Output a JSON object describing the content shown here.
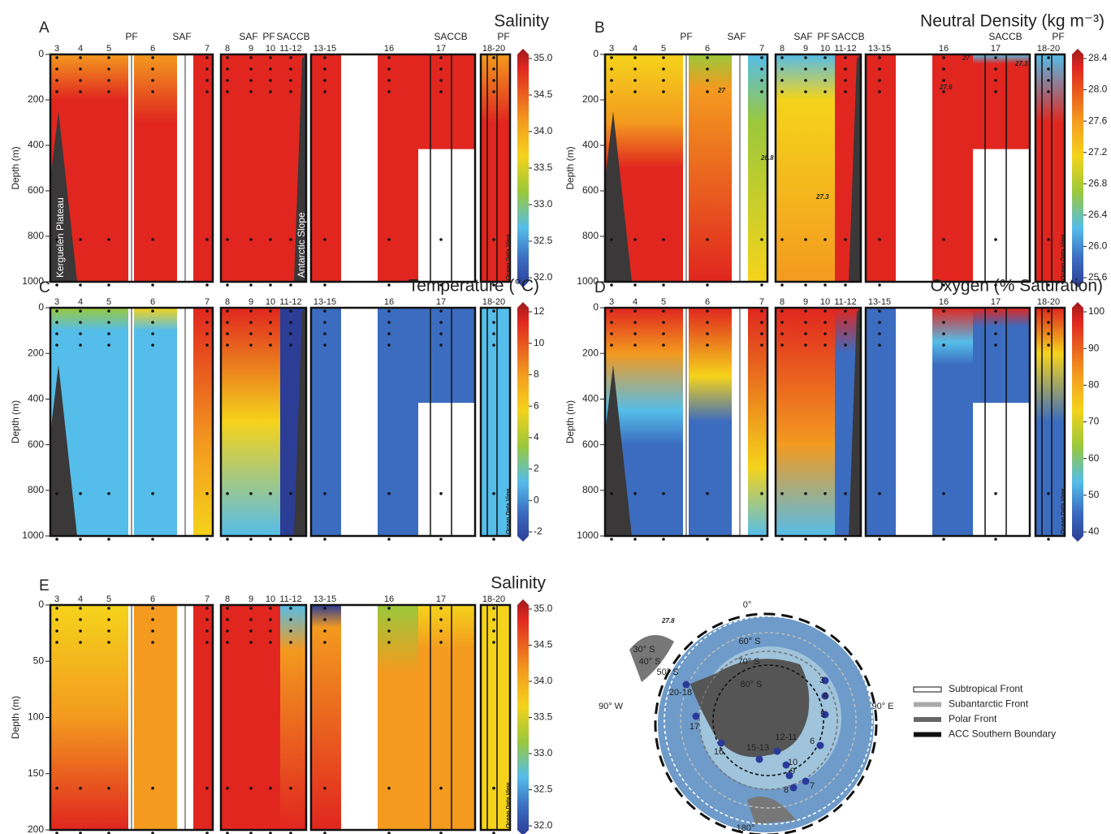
{
  "panels": [
    {
      "letter": "A",
      "title": "Salinity",
      "ylabel": "Depth (m)",
      "ylim": [
        0,
        1000
      ],
      "yticks": [
        0,
        200,
        400,
        600,
        800,
        1000
      ],
      "clim": [
        32,
        35
      ],
      "cticks": [
        {
          "value": 35,
          "label": "35.0"
        },
        34.5,
        {
          "value": 34,
          "label": "34.0"
        },
        33.5,
        {
          "value": 33,
          "label": "33.0"
        },
        32.5,
        {
          "value": 32,
          "label": "32.0"
        }
      ],
      "stations": [
        "3",
        "4",
        "5",
        "6",
        "7",
        "8",
        "9",
        "10",
        "11-12",
        "13-15",
        "16",
        "17",
        "18-20"
      ],
      "fronts": [
        "PF",
        "SAF",
        "SAF",
        "PF",
        "SACCB",
        "SACCB",
        "PF"
      ],
      "annotations": [
        "Kerguelen Plateau",
        "Antarctic Slope"
      ],
      "watermark": "Ocean Data View"
    },
    {
      "letter": "B",
      "title": "Neutral Density (kg m⁻³)",
      "ylabel": "Depth (m)",
      "ylim": [
        0,
        1000
      ],
      "yticks": [
        0,
        200,
        400,
        600,
        800,
        1000
      ],
      "clim": [
        25.6,
        28.4
      ],
      "cticks": [
        28.4,
        {
          "value": 28,
          "label": "28.0"
        },
        27.6,
        27.2,
        26.8,
        26.4,
        {
          "value": 26,
          "label": "26.0"
        },
        25.6
      ],
      "stations": [
        "3",
        "4",
        "5",
        "6",
        "7",
        "8",
        "9",
        "10",
        "11-12",
        "13-15",
        "16",
        "17",
        "18-20"
      ],
      "fronts": [
        "PF",
        "SAF",
        "SAF",
        "PF",
        "SACCB",
        "SACCB",
        "PF"
      ],
      "contour_labels": [
        "27.6",
        "27.8",
        "27",
        "26.8",
        "27",
        "27.3",
        "27.6",
        "27",
        "27.3"
      ],
      "watermark": "Ocean Data View"
    },
    {
      "letter": "C",
      "title": "Temperature (°C)",
      "ylabel": "Depth (m)",
      "ylim": [
        0,
        1000
      ],
      "yticks": [
        0,
        200,
        400,
        600,
        800,
        1000
      ],
      "clim": [
        -2,
        12
      ],
      "cticks": [
        12,
        10,
        8,
        6,
        4,
        2,
        0,
        -2
      ],
      "stations": [
        "3",
        "4",
        "5",
        "6",
        "7",
        "8",
        "9",
        "10",
        "11-12",
        "13-15",
        "16",
        "17",
        "18-20"
      ],
      "watermark": "Ocean Data View"
    },
    {
      "letter": "D",
      "title": "Oxygen (% Saturation)",
      "ylabel": "Depth (m)",
      "ylim": [
        0,
        1000
      ],
      "yticks": [
        0,
        200,
        400,
        600,
        800,
        1000
      ],
      "clim": [
        40,
        100
      ],
      "cticks": [
        100,
        90,
        80,
        70,
        60,
        50,
        40
      ],
      "stations": [
        "3",
        "4",
        "5",
        "6",
        "7",
        "8",
        "9",
        "10",
        "11-12",
        "13-15",
        "16",
        "17",
        "18-20"
      ],
      "watermark": "Ocean Data View"
    },
    {
      "letter": "E",
      "title": "Salinity",
      "ylabel": "Depth (m)",
      "ylim": [
        0,
        200
      ],
      "yticks": [
        0,
        50,
        100,
        150,
        200
      ],
      "clim": [
        32,
        35
      ],
      "cticks": [
        {
          "value": 35,
          "label": "35.0"
        },
        34.5,
        {
          "value": 34,
          "label": "34.0"
        },
        33.5,
        {
          "value": 33,
          "label": "33.0"
        },
        32.5,
        {
          "value": 32,
          "label": "32.0"
        }
      ],
      "stations": [
        "3",
        "4",
        "5",
        "6",
        "7",
        "8",
        "9",
        "10",
        "11-12",
        "13-15",
        "16",
        "17",
        "18-20"
      ],
      "watermark": "Ocean Data View"
    }
  ],
  "map": {
    "labels": [
      "0°",
      "180°",
      "90° W",
      "90° E",
      "30° S",
      "40° S",
      "50° S",
      "60° S",
      "70° S",
      "80° S"
    ],
    "stations": [
      "3",
      "4",
      "5",
      "6",
      "7",
      "8",
      "9",
      "10",
      "12-11",
      "15-13",
      "16",
      "17",
      "20-18"
    ],
    "legend": [
      "Subtropical Front",
      "Subantarctic Front",
      "Polar Front",
      "ACC Southern Boundary"
    ]
  }
}
